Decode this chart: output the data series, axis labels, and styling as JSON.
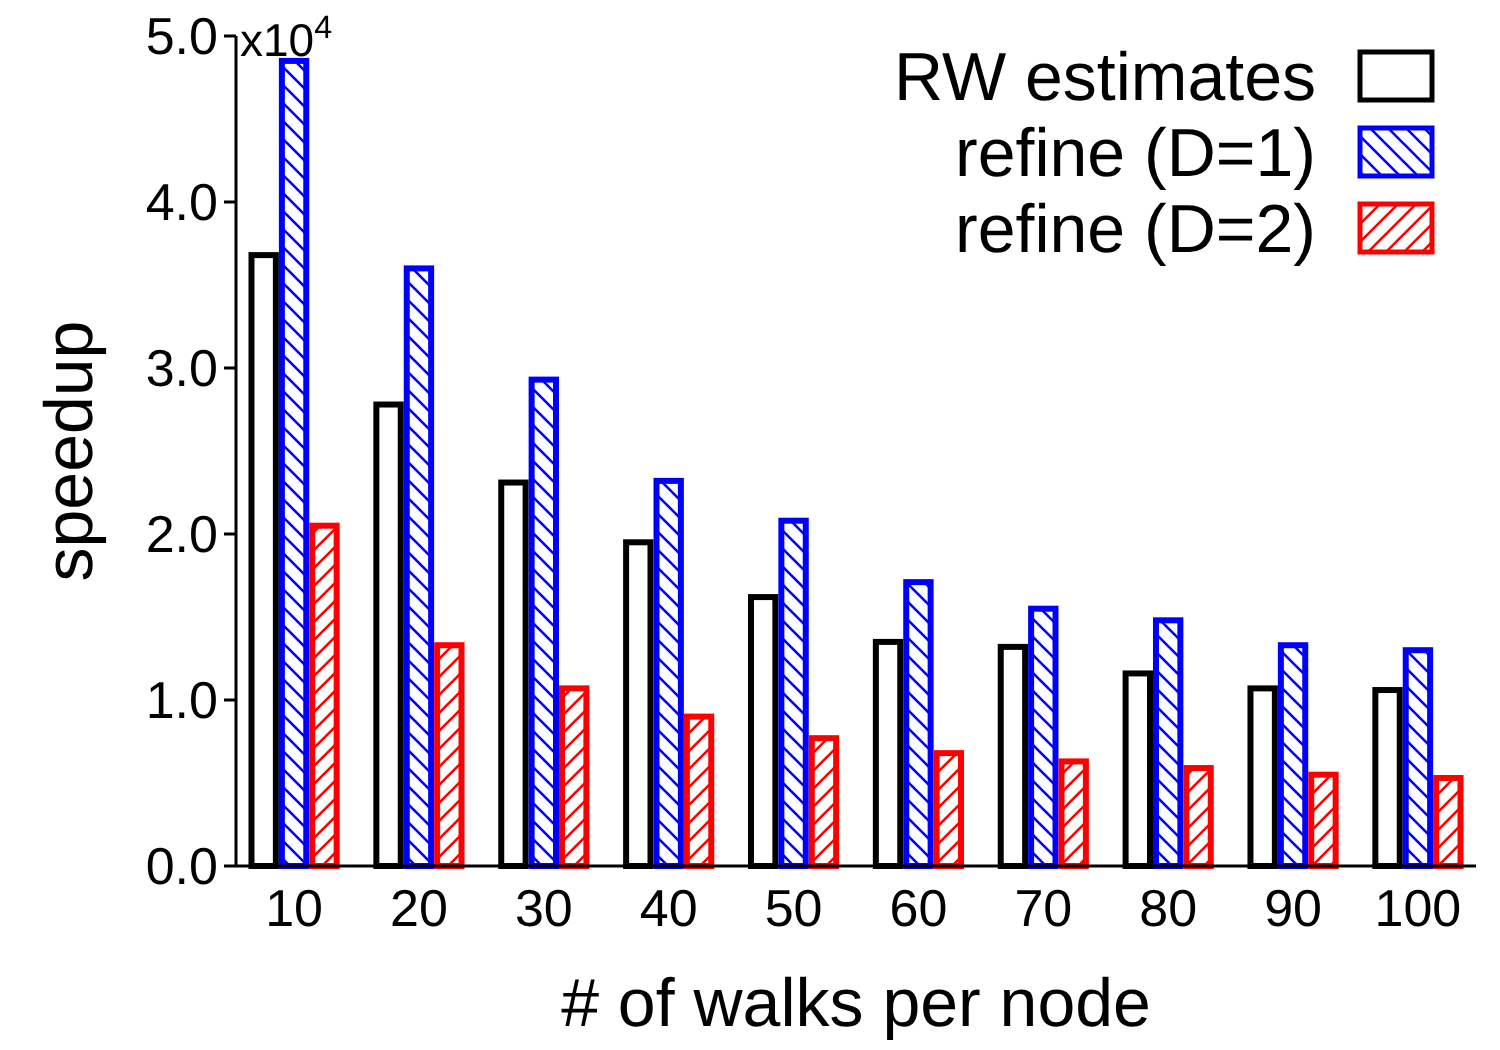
{
  "chart_data": {
    "type": "bar",
    "xlabel": "# of walks per node",
    "ylabel": "speedup",
    "categories": [
      "10",
      "20",
      "30",
      "40",
      "50",
      "60",
      "70",
      "80",
      "90",
      "100"
    ],
    "series": [
      {
        "name": "RW estimates",
        "color": "#000000",
        "values": [
          3.68,
          2.78,
          2.31,
          1.95,
          1.62,
          1.35,
          1.32,
          1.16,
          1.07,
          1.06
        ]
      },
      {
        "name": "refine (D=1)",
        "color": "#0000ff",
        "values": [
          4.85,
          3.6,
          2.93,
          2.32,
          2.08,
          1.71,
          1.55,
          1.48,
          1.33,
          1.3
        ]
      },
      {
        "name": "refine (D=2)",
        "color": "#ff0000",
        "values": [
          2.05,
          1.33,
          1.07,
          0.9,
          0.77,
          0.68,
          0.63,
          0.59,
          0.55,
          0.53
        ]
      }
    ],
    "ylim": [
      0,
      5
    ],
    "yticks": [
      {
        "value": 0,
        "label": "0.0"
      },
      {
        "value": 1,
        "label": "1.0"
      },
      {
        "value": 2,
        "label": "2.0"
      },
      {
        "value": 3,
        "label": "3.0"
      },
      {
        "value": 4,
        "label": "4.0"
      },
      {
        "value": 5,
        "label": "5.0"
      }
    ],
    "annotations": [
      "x10$^{4}$"
    ],
    "legend": "top right",
    "grid": false
  }
}
